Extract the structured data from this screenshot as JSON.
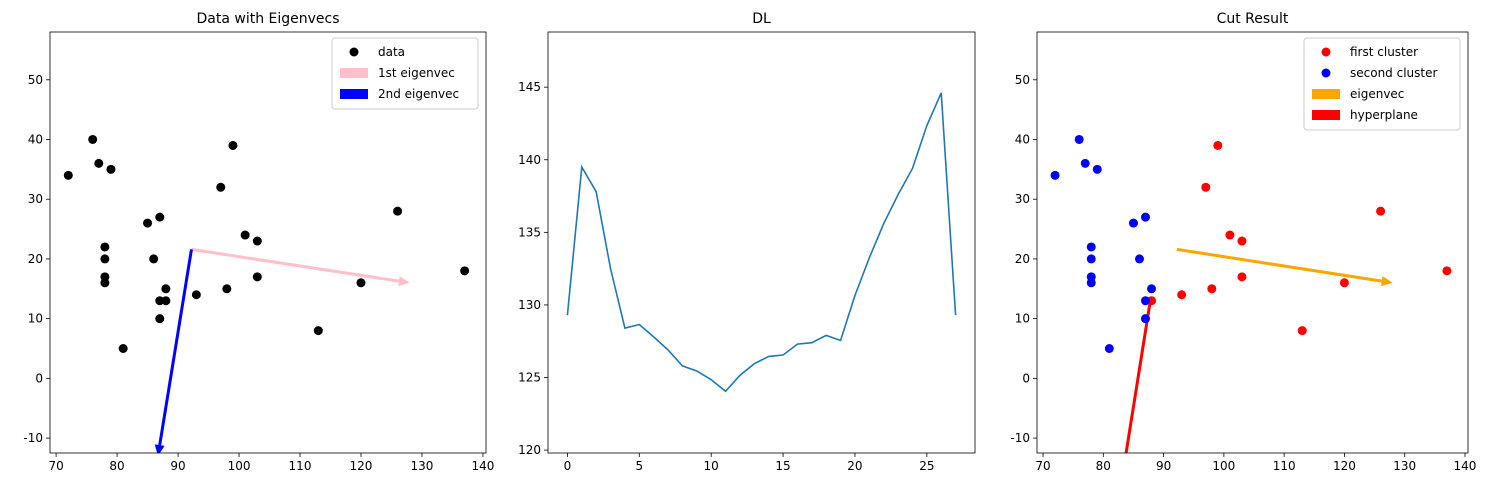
{
  "chart_data": [
    {
      "type": "scatter",
      "title": "Data with Eigenvecs",
      "xlim": [
        69,
        140.5
      ],
      "ylim": [
        -12.5,
        58
      ],
      "xticks": [
        70,
        80,
        90,
        100,
        110,
        120,
        130,
        140
      ],
      "yticks": [
        -10,
        0,
        10,
        20,
        30,
        40,
        50
      ],
      "legend_position": "top-right",
      "points": {
        "name": "data",
        "color": "#000000",
        "x": [
          72,
          76,
          77,
          79,
          99,
          97,
          126,
          85,
          87,
          101,
          103,
          78,
          78,
          86,
          78,
          78,
          103,
          120,
          137,
          88,
          98,
          93,
          87,
          88,
          87,
          113,
          81
        ],
        "y": [
          34,
          40,
          36,
          35,
          39,
          32,
          28,
          26,
          27,
          24,
          23,
          22,
          20,
          20,
          17,
          16,
          17,
          16,
          18,
          15,
          15,
          14,
          13,
          13,
          10,
          8,
          5
        ]
      },
      "arrows": [
        {
          "name": "1st eigenvec",
          "color": "#ffc0cb",
          "from": [
            92.2,
            21.6
          ],
          "to": [
            128,
            16
          ]
        },
        {
          "name": "2nd eigenvec",
          "color": "#0000ff",
          "from": [
            92.2,
            21.6
          ],
          "to": [
            86.7,
            -13
          ]
        }
      ],
      "legend": [
        {
          "label": "data",
          "kind": "marker",
          "color": "#000000"
        },
        {
          "label": "1st eigenvec",
          "kind": "patch",
          "color": "#ffc0cb"
        },
        {
          "label": "2nd eigenvec",
          "kind": "patch",
          "color": "#0000ff"
        }
      ]
    },
    {
      "type": "line",
      "title": "DL",
      "xlim": [
        -1.35,
        28.35
      ],
      "ylim": [
        119.8,
        148.8
      ],
      "xticks": [
        0,
        5,
        10,
        15,
        20,
        25
      ],
      "yticks": [
        120,
        125,
        130,
        135,
        140,
        145
      ],
      "series": [
        {
          "color": "#1f77b4",
          "x": [
            0,
            1,
            2,
            3,
            4,
            5,
            6,
            7,
            8,
            9,
            10,
            11,
            12,
            13,
            14,
            15,
            16,
            17,
            18,
            19,
            20,
            21,
            22,
            23,
            24,
            25,
            26,
            27
          ],
          "y": [
            129.3,
            139.5,
            137.8,
            132.5,
            128.4,
            128.65,
            127.8,
            126.9,
            125.8,
            125.45,
            124.85,
            124.05,
            125.15,
            125.95,
            126.45,
            126.55,
            127.3,
            127.4,
            127.9,
            127.55,
            130.65,
            133.25,
            135.6,
            137.6,
            139.4,
            142.35,
            144.6,
            129.3
          ]
        }
      ]
    },
    {
      "type": "scatter",
      "title": "Cut Result",
      "xlim": [
        69,
        140.5
      ],
      "ylim": [
        -12.5,
        58
      ],
      "xticks": [
        70,
        80,
        90,
        100,
        110,
        120,
        130,
        140
      ],
      "yticks": [
        -10,
        0,
        10,
        20,
        30,
        40,
        50
      ],
      "legend_position": "top-right",
      "series": [
        {
          "name": "first cluster",
          "color": "#ff0000",
          "x": [
            99,
            97,
            126,
            101,
            103,
            103,
            120,
            137,
            98,
            93,
            88,
            113
          ],
          "y": [
            39,
            32,
            28,
            24,
            23,
            17,
            16,
            18,
            15,
            14,
            13,
            8
          ]
        },
        {
          "name": "second cluster",
          "color": "#0000ff",
          "x": [
            72,
            76,
            77,
            79,
            85,
            87,
            78,
            78,
            86,
            78,
            78,
            88,
            87,
            87,
            81
          ],
          "y": [
            34,
            40,
            36,
            35,
            26,
            27,
            22,
            20,
            20,
            17,
            16,
            15,
            13,
            10,
            5
          ]
        }
      ],
      "arrows": [
        {
          "name": "eigenvec",
          "color": "#ffa500",
          "from": [
            92.2,
            21.6
          ],
          "to": [
            128,
            16
          ],
          "head": true
        },
        {
          "name": "hyperplane",
          "color": "#ff0000",
          "from": [
            87.8,
            13
          ],
          "to": [
            83.7,
            -13
          ],
          "head": false
        }
      ],
      "legend": [
        {
          "label": "first cluster",
          "kind": "marker",
          "color": "#ff0000"
        },
        {
          "label": "second cluster",
          "kind": "marker",
          "color": "#0000ff"
        },
        {
          "label": "eigenvec",
          "kind": "patch",
          "color": "#ffa500"
        },
        {
          "label": "hyperplane",
          "kind": "patch",
          "color": "#ff0000"
        }
      ]
    }
  ]
}
